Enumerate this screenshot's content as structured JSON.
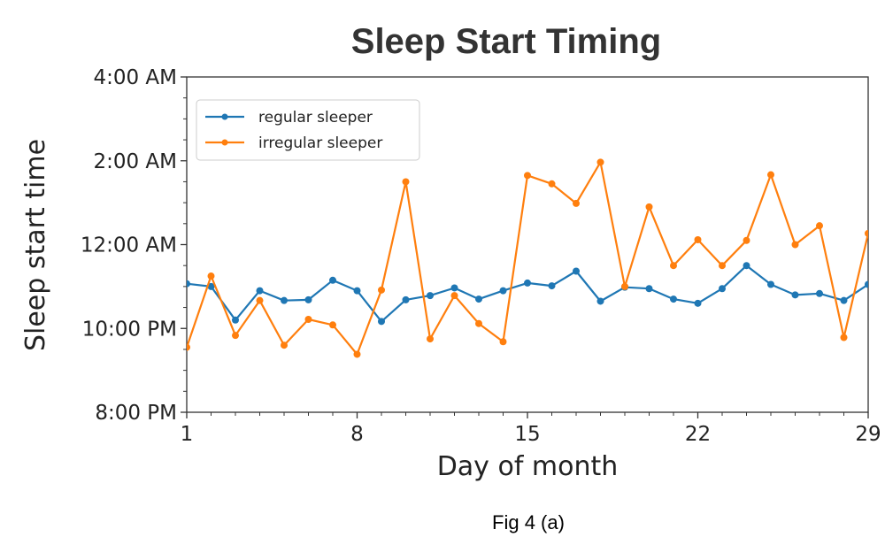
{
  "caption": "Fig 4 (a)",
  "chart_data": {
    "type": "line",
    "title": "Sleep Start Timing",
    "xlabel": "Day of month",
    "ylabel": "Sleep start time",
    "xlim": [
      1,
      29
    ],
    "ylim": [
      -240,
      240
    ],
    "x_ticks": [
      1,
      8,
      15,
      22,
      29
    ],
    "y_ticks": [
      {
        "value": -240,
        "label": "8:00 PM"
      },
      {
        "value": -120,
        "label": "10:00 PM"
      },
      {
        "value": 0,
        "label": "12:00 AM"
      },
      {
        "value": 120,
        "label": "2:00 AM"
      },
      {
        "value": 240,
        "label": "4:00 AM"
      }
    ],
    "y_unit_note": "minutes relative to 12:00 AM",
    "grid": false,
    "legend_position": "top-left",
    "x": [
      1,
      2,
      3,
      4,
      5,
      6,
      7,
      8,
      9,
      10,
      11,
      12,
      13,
      14,
      15,
      16,
      17,
      18,
      19,
      20,
      21,
      22,
      23,
      24,
      25,
      26,
      27,
      28,
      29
    ],
    "series": [
      {
        "name": "regular sleeper",
        "color": "#1f77b4",
        "values": [
          -56,
          -60,
          -108,
          -66,
          -80,
          -79,
          -51,
          -66,
          -110,
          -79,
          -73,
          -62,
          -78,
          -66,
          -55,
          -59,
          -38,
          -81,
          -61,
          -63,
          -78,
          -84,
          -63,
          -30,
          -57,
          -72,
          -70,
          -80,
          -57
        ]
      },
      {
        "name": "irregular sleeper",
        "color": "#ff7f0e",
        "values": [
          -147,
          -45,
          -130,
          -80,
          -144,
          -107,
          -115,
          -157,
          -65,
          90,
          -135,
          -73,
          -113,
          -139,
          99,
          87,
          59,
          118,
          -60,
          54,
          -30,
          7,
          -30,
          6,
          100,
          0,
          27,
          -133,
          16
        ]
      }
    ]
  }
}
